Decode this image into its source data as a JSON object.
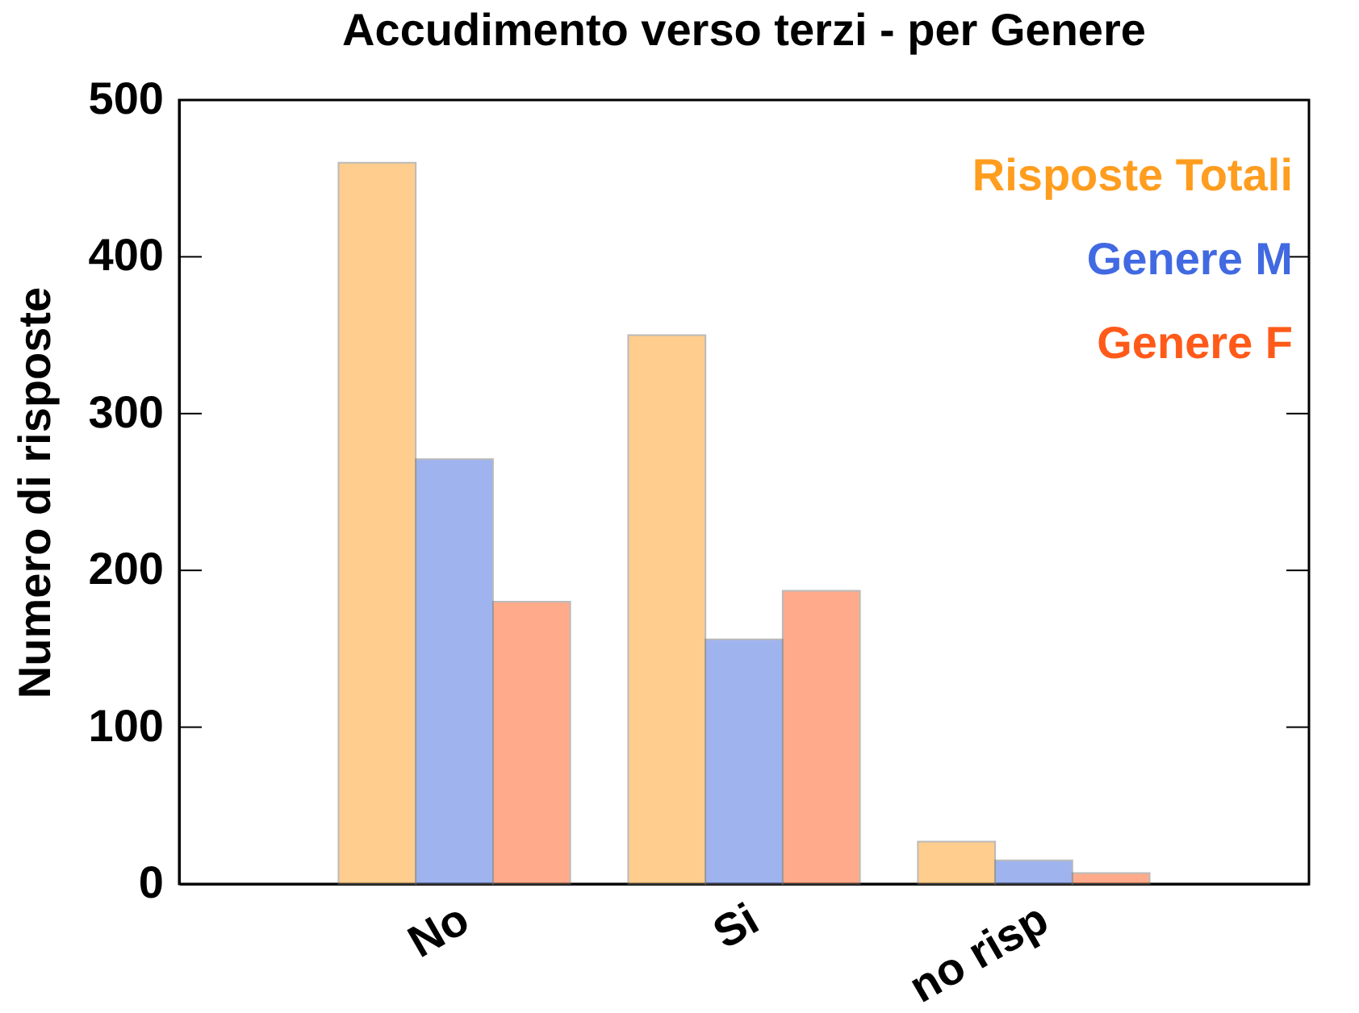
{
  "chart_data": {
    "type": "bar",
    "title": "Accudimento verso terzi - per Genere",
    "ylabel": "Numero di risposte",
    "categories": [
      "No",
      "Si",
      "no risp"
    ],
    "series": [
      {
        "name": "Risposte Totali",
        "color": "#ff9d1f",
        "values": [
          460,
          350,
          27
        ]
      },
      {
        "name": "Genere M",
        "color": "#4169e1",
        "values": [
          271,
          156,
          15
        ]
      },
      {
        "name": "Genere F",
        "color": "#ff5a1a",
        "values": [
          180,
          187,
          7
        ]
      }
    ],
    "ylim": [
      0,
      500
    ],
    "yticks": [
      0,
      100,
      200,
      300,
      400,
      500
    ],
    "grid": false,
    "legend": "top right"
  }
}
